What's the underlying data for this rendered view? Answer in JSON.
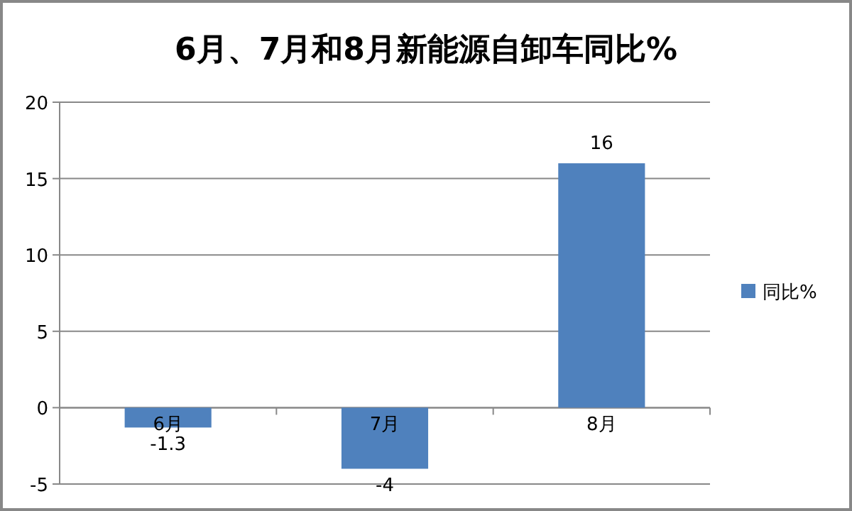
{
  "chart_data": {
    "type": "bar",
    "title": "6月、7月和8月新能源自卸车同比%",
    "categories": [
      "6月",
      "7月",
      "8月"
    ],
    "series": [
      {
        "name": "同比%",
        "color": "#4f81bd",
        "values": [
          -1.3,
          -4,
          16
        ]
      }
    ],
    "ylim": [
      -5,
      20
    ],
    "yticks": [
      -5,
      0,
      5,
      10,
      15,
      20
    ],
    "grid": "y",
    "legend": "right",
    "data_labels": true
  }
}
